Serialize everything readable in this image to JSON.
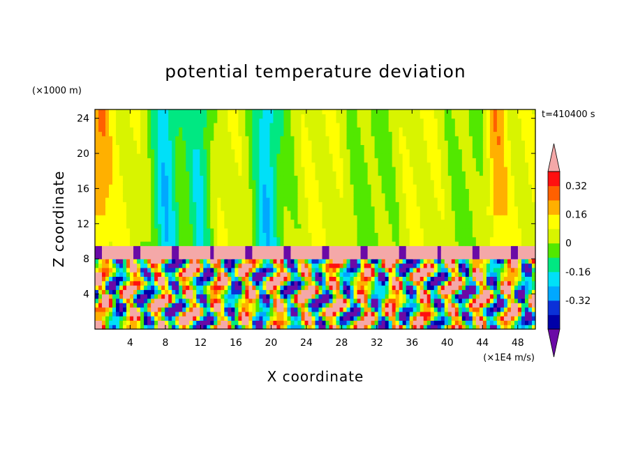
{
  "chart_data": {
    "type": "heatmap",
    "title": "potential temperature deviation",
    "xlabel": "X coordinate",
    "ylabel": "Z coordinate",
    "x_unit": "(×1E4 m/s)",
    "y_unit": "(×1000 m)",
    "time_label": "t=410400 s",
    "x_ticks": [
      "4",
      "8",
      "12",
      "16",
      "20",
      "24",
      "28",
      "32",
      "36",
      "40",
      "44",
      "48"
    ],
    "x_tick_values": [
      4,
      8,
      12,
      16,
      20,
      24,
      28,
      32,
      36,
      40,
      44,
      48
    ],
    "xlim": [
      0,
      50
    ],
    "y_ticks": [
      "4",
      "8",
      "12",
      "16",
      "20",
      "24"
    ],
    "y_tick_values": [
      4,
      8,
      12,
      16,
      20,
      24
    ],
    "ylim": [
      0,
      25
    ],
    "colorbar": {
      "levels": [
        -0.48,
        -0.4,
        -0.32,
        -0.24,
        -0.16,
        -0.08,
        0,
        0.08,
        0.16,
        0.24,
        0.32,
        0.4
      ],
      "tick_labels": [
        "-0.32",
        "-0.16",
        "0",
        "0.16",
        "0.32"
      ],
      "tick_values": [
        -0.32,
        -0.16,
        0,
        0.16,
        0.32
      ],
      "colors": [
        "#6a0aa6",
        "#0000a8",
        "#0b31d8",
        "#00a8ff",
        "#00e0f8",
        "#00e882",
        "#52e800",
        "#d8f400",
        "#ffff00",
        "#ffb000",
        "#ff6000",
        "#ff1010",
        "#f4a8a8"
      ],
      "extend": "both"
    },
    "regions": {
      "upper_layer_z": [
        9.5,
        25
      ],
      "inversion_band_z": [
        8.0,
        9.5
      ],
      "lower_turbulent_z": [
        0,
        8.0
      ]
    },
    "field_description_values": {
      "upper_dominant": 0.0,
      "cool_columns_upper_x": [
        8,
        12,
        19.5
      ],
      "warm_columns_upper_x": [
        0.5,
        45.5
      ]
    },
    "grid": false,
    "legend": "right-colorbar"
  }
}
